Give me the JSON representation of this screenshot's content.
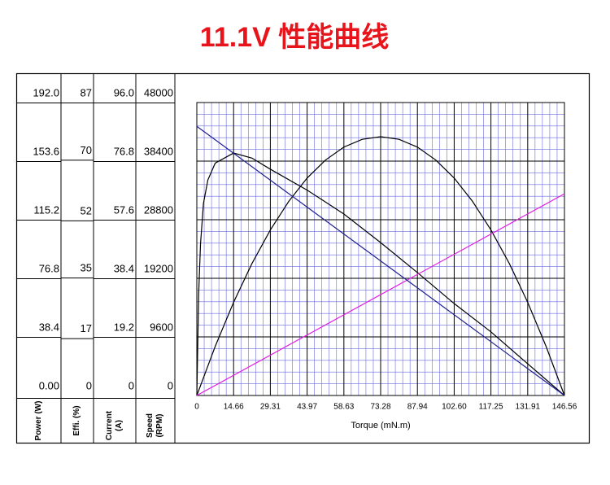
{
  "chart_data": {
    "type": "line",
    "title": "11.1V 性能曲线",
    "x_label": "Torque (mN.m)",
    "xlim": [
      0,
      146.56
    ],
    "xticks": [
      0,
      14.66,
      29.31,
      43.97,
      58.63,
      73.28,
      87.94,
      {
        "value": 102.6,
        "label": "102.60"
      },
      117.25,
      131.91,
      146.56
    ],
    "grid": true,
    "series": [
      {
        "name": "Power (W)",
        "color": "#000000",
        "ylim": [
          0,
          192
        ],
        "ticks": [
          {
            "value": 192,
            "label": "192.0"
          },
          153.6,
          115.2,
          76.8,
          38.4,
          {
            "value": 0,
            "label": "0.00"
          }
        ],
        "x": [
          0,
          7.33,
          14.66,
          21.98,
          29.31,
          36.64,
          43.97,
          51.3,
          58.62,
          65.95,
          73.28,
          80.61,
          87.94,
          95.26,
          102.59,
          109.92,
          117.25,
          124.58,
          131.9,
          139.23,
          146.56
        ],
        "values": [
          0,
          32.2,
          61.1,
          86.5,
          108.5,
          127.2,
          142.5,
          154.3,
          162.8,
          167.9,
          169.6,
          167.9,
          162.8,
          154.3,
          142.5,
          127.2,
          108.5,
          86.5,
          61.1,
          32.2,
          0
        ]
      },
      {
        "name": "Effi. (%)",
        "color": "#000000",
        "ylim": [
          0,
          87
        ],
        "ticks": [
          87,
          70,
          52,
          35,
          17,
          0
        ],
        "x": [
          0,
          0.73,
          1.47,
          2.64,
          4.4,
          7.33,
          14.66,
          21.98,
          29.31,
          43.97,
          58.63,
          73.28,
          87.94,
          102.6,
          117.25,
          131.91,
          146.56
        ],
        "values": [
          0,
          30,
          45,
          57,
          64,
          69,
          72,
          70.5,
          67.2,
          61,
          53.9,
          45.4,
          36.5,
          27.3,
          18.9,
          9.4,
          0
        ]
      },
      {
        "name": "Current (A)",
        "color": "#e020e0",
        "ylim": [
          0,
          96
        ],
        "ticks": [
          {
            "value": 96,
            "label": "96.0"
          },
          76.8,
          57.6,
          38.4,
          19.2,
          0
        ],
        "x": [
          0,
          146.56
        ],
        "values": [
          0,
          66.1
        ]
      },
      {
        "name": "Speed (RPM)",
        "color": "#1f1f8f",
        "ylim": [
          0,
          48000
        ],
        "ticks": [
          48000,
          38400,
          28800,
          19200,
          9600,
          0
        ],
        "x": [
          0,
          146.56
        ],
        "values": [
          44100,
          0
        ]
      }
    ]
  }
}
